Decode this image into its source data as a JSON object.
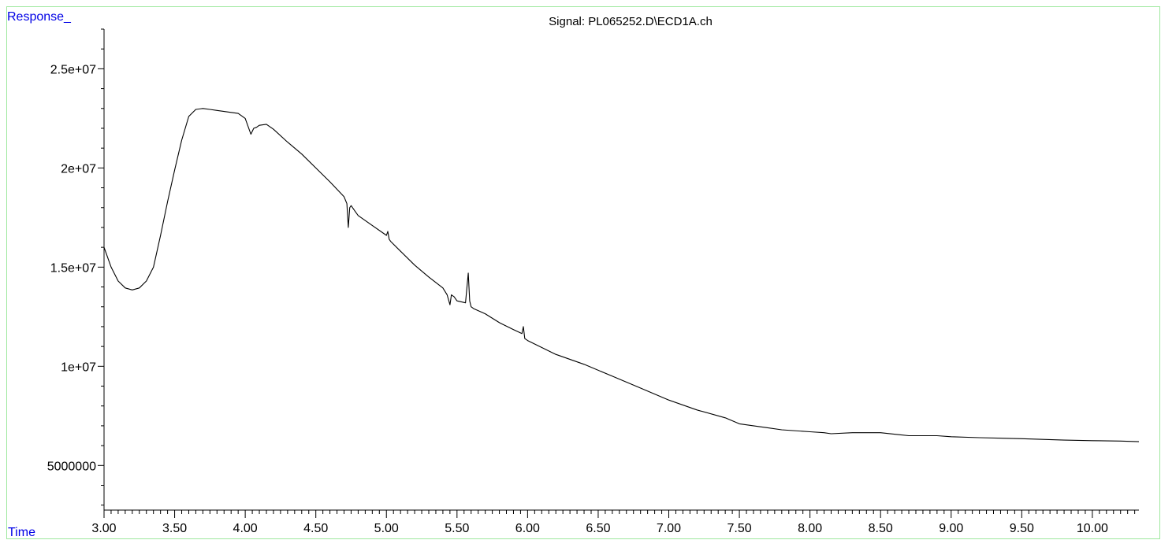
{
  "chart_data": {
    "type": "line",
    "title": "Signal: PL065252.D\\ECD1A.ch",
    "xlabel": "Time",
    "ylabel": "Response_",
    "xlim": [
      3.0,
      10.33
    ],
    "ylim": [
      2750000,
      27000000
    ],
    "x_ticks": [
      3.0,
      3.5,
      4.0,
      4.5,
      5.0,
      5.5,
      6.0,
      6.5,
      7.0,
      7.5,
      8.0,
      8.5,
      9.0,
      9.5,
      10.0
    ],
    "x_tick_labels": [
      "3.00",
      "3.50",
      "4.00",
      "4.50",
      "5.00",
      "5.50",
      "6.00",
      "6.50",
      "7.00",
      "7.50",
      "8.00",
      "8.50",
      "9.00",
      "9.50",
      "10.00"
    ],
    "y_ticks": [
      5000000,
      10000000,
      15000000,
      20000000,
      25000000
    ],
    "y_tick_labels": [
      "5000000",
      "1e+07",
      "1.5e+07",
      "2e+07",
      "2.5e+07"
    ],
    "grid": false,
    "series": [
      {
        "x": [
          3.0,
          3.05,
          3.1,
          3.15,
          3.2,
          3.25,
          3.3,
          3.35,
          3.4,
          3.45,
          3.5,
          3.55,
          3.6,
          3.65,
          3.7,
          3.75,
          3.8,
          3.85,
          3.9,
          3.95,
          4.0,
          4.04,
          4.06,
          4.08,
          4.1,
          4.15,
          4.2,
          4.3,
          4.4,
          4.5,
          4.6,
          4.7,
          4.72,
          4.73,
          4.74,
          4.75,
          4.76,
          4.78,
          4.8,
          4.9,
          5.0,
          5.01,
          5.02,
          5.03,
          5.1,
          5.2,
          5.3,
          5.4,
          5.43,
          5.45,
          5.46,
          5.48,
          5.5,
          5.56,
          5.58,
          5.59,
          5.6,
          5.62,
          5.7,
          5.8,
          5.9,
          5.96,
          5.97,
          5.98,
          6.0,
          6.2,
          6.4,
          6.6,
          6.8,
          7.0,
          7.2,
          7.4,
          7.5,
          7.7,
          7.8,
          8.0,
          8.1,
          8.15,
          8.3,
          8.5,
          8.7,
          8.9,
          9.0,
          9.2,
          9.5,
          9.8,
          10.0,
          10.2,
          10.33
        ],
        "y": [
          16000000,
          15000000,
          14300000,
          13950000,
          13850000,
          13950000,
          14300000,
          15000000,
          16600000,
          18300000,
          19900000,
          21400000,
          22600000,
          22950000,
          23000000,
          22950000,
          22900000,
          22850000,
          22800000,
          22750000,
          22500000,
          21700000,
          22000000,
          22050000,
          22150000,
          22200000,
          21950000,
          21300000,
          20700000,
          20000000,
          19300000,
          18550000,
          18200000,
          17000000,
          18000000,
          18100000,
          18000000,
          17800000,
          17600000,
          17100000,
          16600000,
          16800000,
          16400000,
          16300000,
          15800000,
          15100000,
          14500000,
          13950000,
          13600000,
          13100000,
          13600000,
          13500000,
          13300000,
          13200000,
          14700000,
          13300000,
          13000000,
          12900000,
          12650000,
          12200000,
          11850000,
          11650000,
          12000000,
          11400000,
          11300000,
          10600000,
          10100000,
          9500000,
          8900000,
          8300000,
          7800000,
          7400000,
          7100000,
          6900000,
          6800000,
          6700000,
          6650000,
          6600000,
          6650000,
          6650000,
          6500000,
          6500000,
          6450000,
          6400000,
          6350000,
          6280000,
          6250000,
          6230000,
          6200000
        ]
      }
    ]
  }
}
